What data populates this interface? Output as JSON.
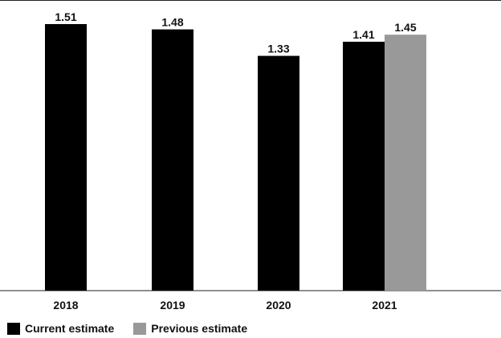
{
  "chart_data": {
    "type": "bar",
    "categories": [
      "2018",
      "2019",
      "2020",
      "2021"
    ],
    "series": [
      {
        "name": "Current estimate",
        "values": [
          1.51,
          1.48,
          1.33,
          1.41
        ],
        "color": "#000000"
      },
      {
        "name": "Previous estimate",
        "values": [
          null,
          null,
          null,
          1.45
        ],
        "color": "#999999"
      }
    ],
    "data_labels": true,
    "ylim": [
      0,
      1.51
    ],
    "grid": false,
    "legend": "bottom-left",
    "title": "",
    "xlabel": "",
    "ylabel": ""
  }
}
